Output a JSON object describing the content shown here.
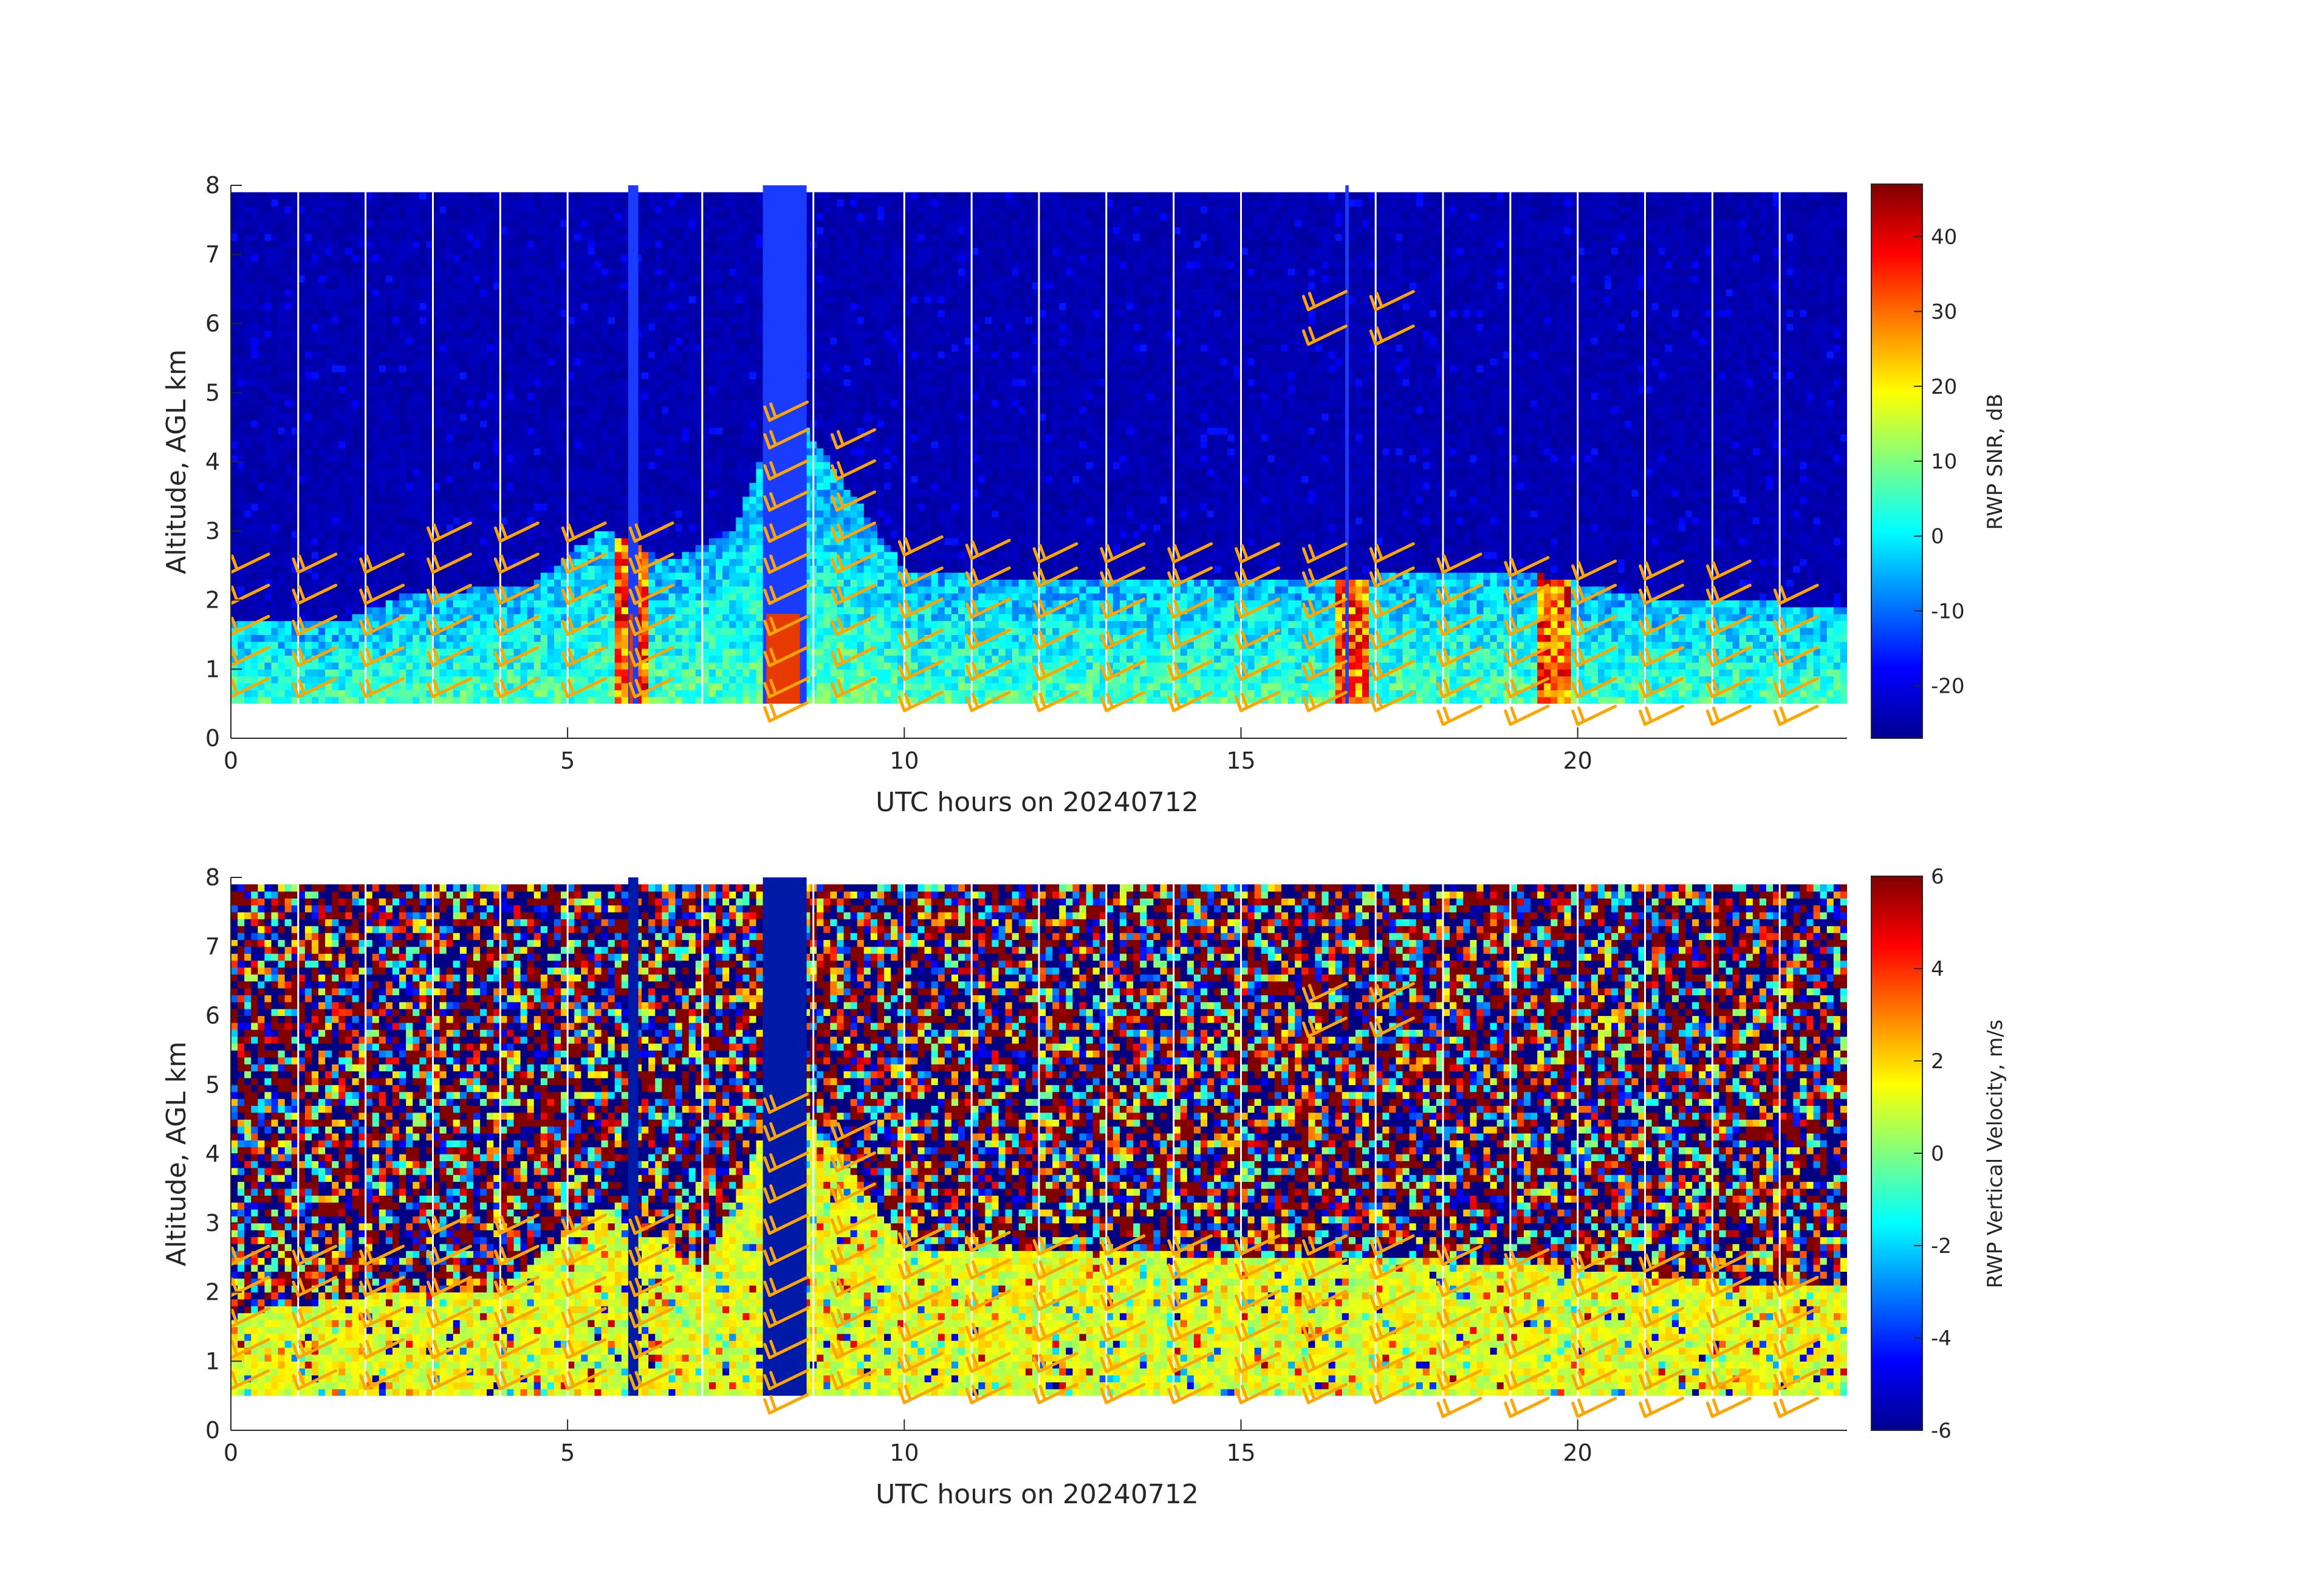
{
  "figure": {
    "background": "#ffffff",
    "barb_color": "#ffa500",
    "gap_line_color": "#ffffff",
    "nodata_below_km": 0.5
  },
  "chart_data": [
    {
      "type": "heatmap",
      "panel": "snr",
      "xlabel": "UTC hours on 20240712",
      "ylabel": "Altitude, AGL km",
      "xlim": [
        0,
        24
      ],
      "ylim": [
        0,
        8
      ],
      "xticks": [
        0,
        5,
        10,
        15,
        20
      ],
      "yticks": [
        0,
        1,
        2,
        3,
        4,
        5,
        6,
        7,
        8
      ],
      "colorbar": {
        "label": "RWP SNR, dB",
        "range": [
          -27,
          47
        ],
        "ticks": [
          -20,
          -10,
          0,
          10,
          20,
          30,
          40
        ],
        "colormap": "jet"
      },
      "data_gaps_hours": [
        1.0,
        2.0,
        3.0,
        4.0,
        5.0,
        7.0,
        8.65,
        10.0,
        11.0,
        12.0,
        13.0,
        14.0,
        15.0,
        17.0,
        18.0,
        19.0,
        20.0,
        21.0,
        22.0,
        23.0
      ],
      "boundary_layer": [
        {
          "hour": 0.5,
          "top_km": 1.7
        },
        {
          "hour": 1.5,
          "top_km": 1.6
        },
        {
          "hour": 2.5,
          "top_km": 2.0
        },
        {
          "hour": 3.5,
          "top_km": 2.1
        },
        {
          "hour": 4.5,
          "top_km": 2.2
        },
        {
          "hour": 5.5,
          "top_km": 3.0
        },
        {
          "hour": 6.5,
          "top_km": 2.5
        },
        {
          "hour": 7.5,
          "top_km": 3.0
        },
        {
          "hour": 8.2,
          "top_km": 4.9
        },
        {
          "hour": 9.0,
          "top_km": 3.8
        },
        {
          "hour": 10.0,
          "top_km": 2.4
        },
        {
          "hour": 11.0,
          "top_km": 2.3
        },
        {
          "hour": 12.0,
          "top_km": 2.3
        },
        {
          "hour": 13.0,
          "top_km": 2.3
        },
        {
          "hour": 14.0,
          "top_km": 2.3
        },
        {
          "hour": 15.0,
          "top_km": 2.3
        },
        {
          "hour": 16.0,
          "top_km": 2.3
        },
        {
          "hour": 17.0,
          "top_km": 2.3
        },
        {
          "hour": 18.0,
          "top_km": 2.4
        },
        {
          "hour": 19.0,
          "top_km": 2.4
        },
        {
          "hour": 20.0,
          "top_km": 2.2
        },
        {
          "hour": 21.0,
          "top_km": 2.0
        },
        {
          "hour": 22.0,
          "top_km": 2.0
        },
        {
          "hour": 23.0,
          "top_km": 1.9
        },
        {
          "hour": 24.0,
          "top_km": 1.9
        }
      ],
      "strong_echo_columns_hours": [
        5.9,
        8.2,
        16.6,
        19.6
      ]
    },
    {
      "type": "heatmap",
      "panel": "vertical_velocity",
      "xlabel": "UTC hours on 20240712",
      "ylabel": "Altitude, AGL km",
      "xlim": [
        0,
        24
      ],
      "ylim": [
        0,
        8
      ],
      "xticks": [
        0,
        5,
        10,
        15,
        20
      ],
      "yticks": [
        0,
        1,
        2,
        3,
        4,
        5,
        6,
        7,
        8
      ],
      "colorbar": {
        "label": "RWP Vertical Velocity, m/s",
        "range": [
          -6,
          6
        ],
        "ticks": [
          -6,
          -4,
          -2,
          0,
          2,
          4,
          6
        ],
        "colormap": "jet"
      },
      "data_gaps_hours": [
        1.0,
        2.0,
        3.0,
        4.0,
        5.0,
        7.0,
        8.65,
        10.0,
        11.0,
        12.0,
        13.0,
        14.0,
        15.0,
        17.0,
        18.0,
        19.0,
        20.0,
        21.0,
        22.0,
        23.0
      ],
      "boundary_layer": [
        {
          "hour": 0.5,
          "top_km": 1.7
        },
        {
          "hour": 2.0,
          "top_km": 1.9
        },
        {
          "hour": 4.0,
          "top_km": 2.0
        },
        {
          "hour": 5.5,
          "top_km": 3.2
        },
        {
          "hour": 7.0,
          "top_km": 2.2
        },
        {
          "hour": 8.2,
          "top_km": 4.9
        },
        {
          "hour": 9.0,
          "top_km": 4.0
        },
        {
          "hour": 10.0,
          "top_km": 2.6
        },
        {
          "hour": 12.0,
          "top_km": 2.6
        },
        {
          "hour": 14.0,
          "top_km": 2.5
        },
        {
          "hour": 16.0,
          "top_km": 2.5
        },
        {
          "hour": 18.0,
          "top_km": 2.4
        },
        {
          "hour": 20.0,
          "top_km": 2.3
        },
        {
          "hour": 22.0,
          "top_km": 2.1
        },
        {
          "hour": 24.0,
          "top_km": 2.0
        }
      ]
    }
  ],
  "wind_barbs": [
    {
      "hour": 0.0,
      "levels_km": [
        0.6,
        1.05,
        1.5,
        1.95,
        2.4
      ]
    },
    {
      "hour": 1.0,
      "levels_km": [
        0.6,
        1.05,
        1.5,
        1.95,
        2.4
      ]
    },
    {
      "hour": 2.0,
      "levels_km": [
        0.6,
        1.05,
        1.5,
        1.95,
        2.4
      ]
    },
    {
      "hour": 3.0,
      "levels_km": [
        0.6,
        1.05,
        1.5,
        1.95,
        2.4,
        2.85
      ]
    },
    {
      "hour": 4.0,
      "levels_km": [
        0.6,
        1.05,
        1.5,
        1.95,
        2.4,
        2.85
      ]
    },
    {
      "hour": 5.0,
      "levels_km": [
        0.6,
        1.05,
        1.5,
        1.95,
        2.4,
        2.85
      ]
    },
    {
      "hour": 6.0,
      "levels_km": [
        0.6,
        1.05,
        1.5,
        1.95,
        2.4,
        2.85
      ]
    },
    {
      "hour": 8.0,
      "levels_km": [
        0.25,
        0.6,
        1.05,
        1.5,
        1.95,
        2.4,
        2.85,
        3.3,
        3.75,
        4.2,
        4.6
      ]
    },
    {
      "hour": 9.0,
      "levels_km": [
        0.6,
        1.05,
        1.5,
        1.95,
        2.4,
        2.85,
        3.3,
        3.75,
        4.2
      ]
    },
    {
      "hour": 10.0,
      "levels_km": [
        0.4,
        0.85,
        1.3,
        1.75,
        2.2,
        2.65
      ]
    },
    {
      "hour": 11.0,
      "levels_km": [
        0.4,
        0.85,
        1.3,
        1.75,
        2.2,
        2.6
      ]
    },
    {
      "hour": 12.0,
      "levels_km": [
        0.4,
        0.85,
        1.3,
        1.75,
        2.2,
        2.55
      ]
    },
    {
      "hour": 13.0,
      "levels_km": [
        0.4,
        0.85,
        1.3,
        1.75,
        2.2,
        2.55
      ]
    },
    {
      "hour": 14.0,
      "levels_km": [
        0.4,
        0.85,
        1.3,
        1.75,
        2.2,
        2.55
      ]
    },
    {
      "hour": 15.0,
      "levels_km": [
        0.4,
        0.85,
        1.3,
        1.75,
        2.2,
        2.55
      ]
    },
    {
      "hour": 16.0,
      "levels_km": [
        0.4,
        0.85,
        1.3,
        1.75,
        2.2,
        2.55,
        5.7,
        6.2
      ]
    },
    {
      "hour": 17.0,
      "levels_km": [
        0.4,
        0.85,
        1.3,
        1.75,
        2.2,
        2.55,
        5.7,
        6.2
      ]
    },
    {
      "hour": 18.0,
      "levels_km": [
        0.2,
        0.6,
        1.05,
        1.5,
        1.95,
        2.4
      ]
    },
    {
      "hour": 19.0,
      "levels_km": [
        0.2,
        0.6,
        1.05,
        1.5,
        1.95,
        2.35
      ]
    },
    {
      "hour": 20.0,
      "levels_km": [
        0.2,
        0.6,
        1.05,
        1.5,
        1.95,
        2.3
      ]
    },
    {
      "hour": 21.0,
      "levels_km": [
        0.2,
        0.6,
        1.05,
        1.5,
        1.95,
        2.3
      ]
    },
    {
      "hour": 22.0,
      "levels_km": [
        0.2,
        0.6,
        1.05,
        1.5,
        1.95,
        2.3
      ]
    },
    {
      "hour": 23.0,
      "levels_km": [
        0.2,
        0.6,
        1.05,
        1.5,
        1.95
      ]
    }
  ]
}
